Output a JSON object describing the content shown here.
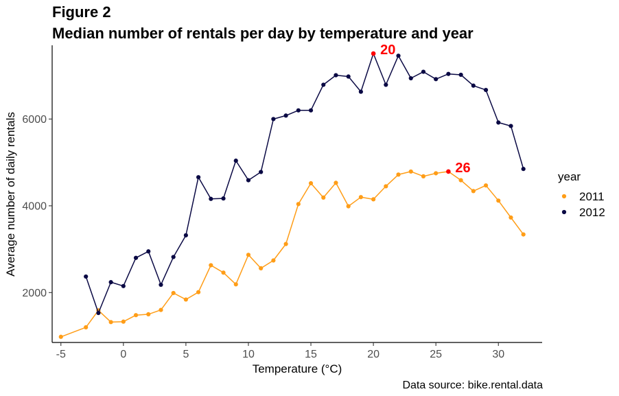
{
  "chart_data": {
    "type": "line",
    "title_line1": "Figure 2",
    "title_line2": "Median number of rentals per day by temperature and year",
    "xlabel": "Temperature (°C)",
    "ylabel": "Average number of daily rentals",
    "caption": "Data source: bike.rental.data",
    "xlim": [
      -5.7,
      33.5
    ],
    "ylim": [
      850,
      7700
    ],
    "x_ticks": [
      -5,
      0,
      5,
      10,
      15,
      20,
      25,
      30
    ],
    "x_tick_labels": [
      "-5",
      "0",
      "5",
      "10",
      "15",
      "20",
      "25",
      "30"
    ],
    "y_ticks": [
      2000,
      4000,
      6000
    ],
    "y_tick_labels": [
      "2000",
      "4000",
      "6000"
    ],
    "grid": false,
    "legend": {
      "title": "year",
      "placement": "right"
    },
    "series": [
      {
        "name": "2011",
        "color": "#ff9d17",
        "x": [
          -5,
          -3,
          -2,
          -1,
          0,
          1,
          2,
          3,
          4,
          5,
          6,
          7,
          8,
          9,
          10,
          11,
          12,
          13,
          14,
          15,
          16,
          17,
          18,
          19,
          20,
          21,
          22,
          23,
          24,
          25,
          26,
          27,
          28,
          29,
          30,
          31,
          32
        ],
        "y": [
          980,
          1200,
          1590,
          1320,
          1330,
          1480,
          1500,
          1600,
          1990,
          1840,
          2010,
          2630,
          2460,
          2190,
          2870,
          2560,
          2740,
          3120,
          4040,
          4520,
          4190,
          4530,
          3990,
          4200,
          4150,
          4450,
          4720,
          4790,
          4680,
          4750,
          4790,
          4590,
          4340,
          4470,
          4120,
          3730,
          3340
        ]
      },
      {
        "name": "2012",
        "color": "#0a0944",
        "x": [
          -3,
          -2,
          -1,
          0,
          1,
          2,
          3,
          4,
          5,
          6,
          7,
          8,
          9,
          10,
          11,
          12,
          13,
          14,
          15,
          16,
          17,
          18,
          19,
          20,
          21,
          22,
          23,
          24,
          25,
          26,
          27,
          28,
          29,
          30,
          31,
          32
        ],
        "y": [
          2370,
          1530,
          2240,
          2150,
          2800,
          2950,
          2180,
          2820,
          3320,
          4660,
          4160,
          4170,
          5040,
          4590,
          4780,
          6000,
          6080,
          6200,
          6200,
          6790,
          7010,
          6980,
          6630,
          7510,
          6790,
          7460,
          6940,
          7090,
          6920,
          7040,
          7020,
          6770,
          6670,
          5920,
          5840,
          4850
        ]
      }
    ],
    "annotations": [
      {
        "series": "2012",
        "x": 20,
        "y": 7510,
        "text": "20",
        "color": "#ff0000"
      },
      {
        "series": "2011",
        "x": 26,
        "y": 4790,
        "text": "26",
        "color": "#ff0000"
      }
    ]
  }
}
